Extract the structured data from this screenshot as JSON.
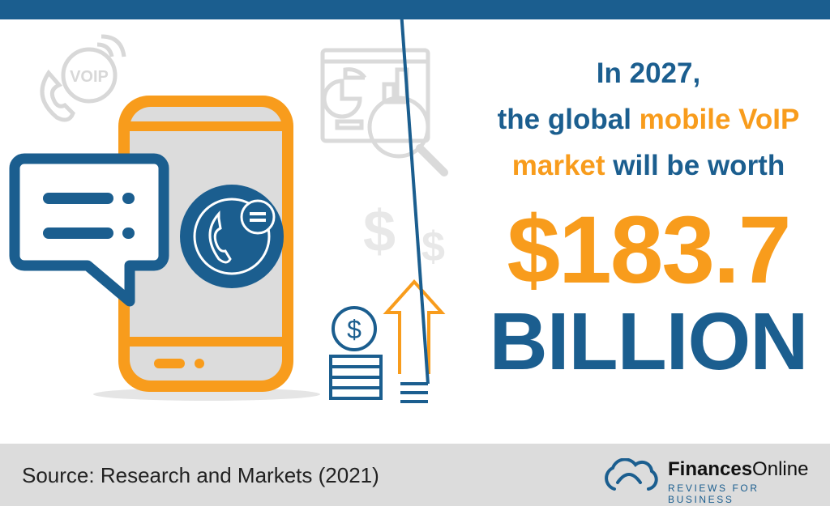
{
  "headline": {
    "line1": "In 2027,",
    "line2_a": "the global ",
    "line2_b": "mobile VoIP",
    "line3_a": "market",
    "line3_b": " will be worth"
  },
  "amount": "$183.7",
  "unit": "BILLION",
  "footer": {
    "source": "Source: Research and Markets (2021)",
    "brand_bold": "Finances",
    "brand_light": "Online",
    "tagline": "REVIEWS FOR BUSINESS"
  },
  "icons": {
    "voip_badge": "VOIP"
  },
  "colors": {
    "blue": "#1b5e8f",
    "orange": "#f89c1c",
    "gray": "#dcdcdc"
  }
}
